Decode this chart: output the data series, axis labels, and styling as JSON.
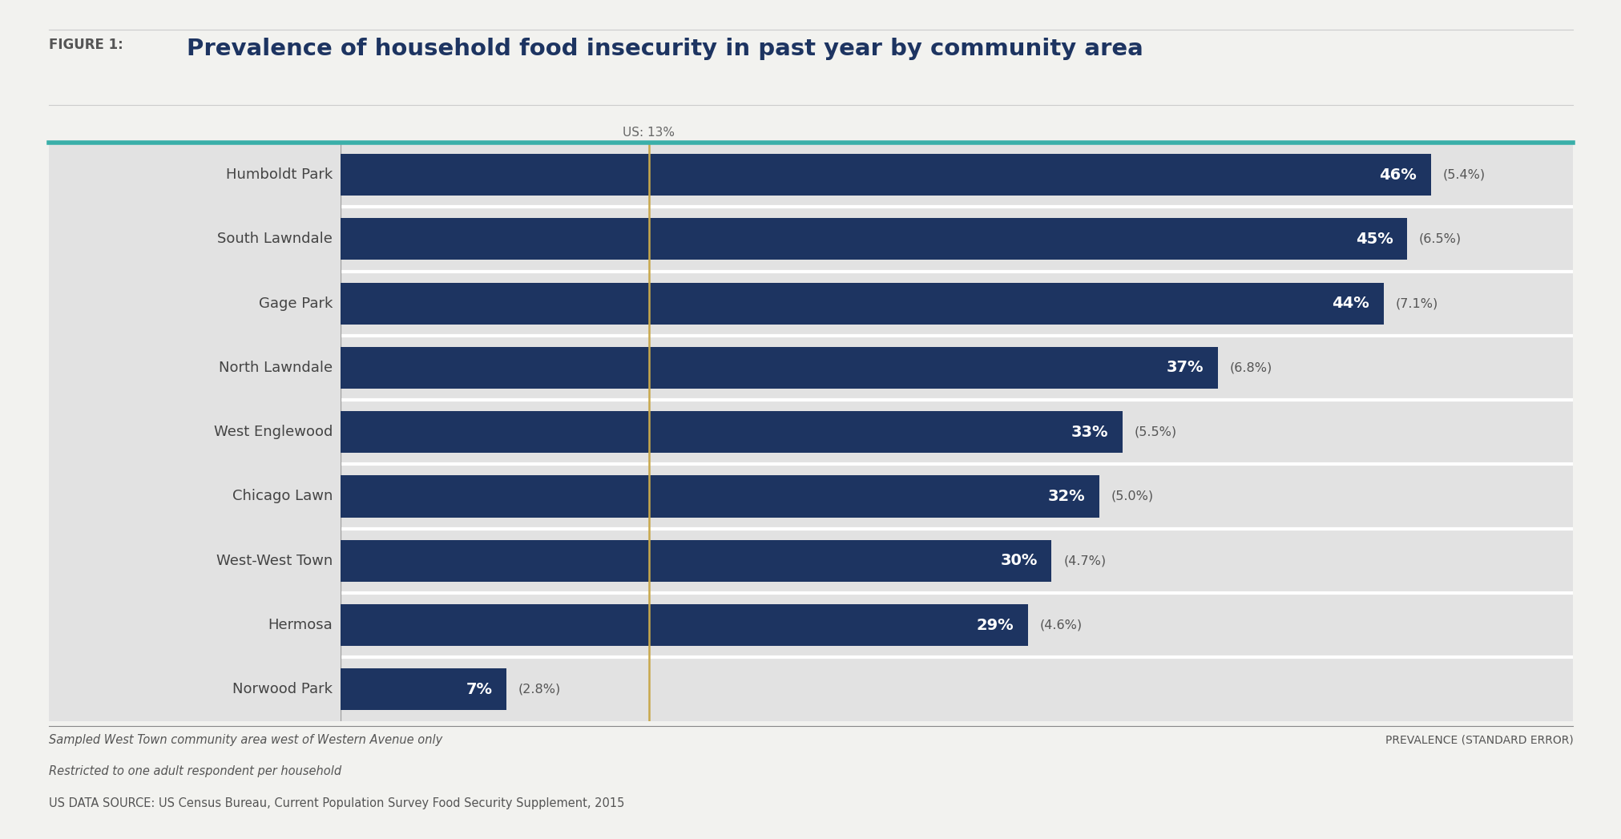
{
  "title_prefix": "FIGURE 1:",
  "title_main": "Prevalence of household food insecurity in past year by community area",
  "categories": [
    "Humboldt Park",
    "South Lawndale",
    "Gage Park",
    "North Lawndale",
    "West Englewood",
    "Chicago Lawn",
    "West-West Town",
    "Hermosa",
    "Norwood Park"
  ],
  "values": [
    46,
    45,
    44,
    37,
    33,
    32,
    30,
    29,
    7
  ],
  "std_errors": [
    "5.4%",
    "6.5%",
    "7.1%",
    "6.8%",
    "5.5%",
    "5.0%",
    "4.7%",
    "4.6%",
    "2.8%"
  ],
  "bar_color": "#1d3461",
  "us_line_value": 13,
  "us_line_color": "#c8a84b",
  "us_line_label": "US: 13%",
  "top_line_color": "#3aafa9",
  "chart_bg": "#e2e2e2",
  "outer_bg": "#f2f2ef",
  "footnote_line1": "Sampled West Town community area west of Western Avenue only",
  "footnote_line2": "Restricted to one adult respondent per household",
  "footnote_line3": "US DATA SOURCE: US Census Bureau, Current Population Survey Food Security Supplement, 2015",
  "axis_label": "PREVALENCE (STANDARD ERROR)",
  "xlim_max": 52,
  "bar_label_color": "#ffffff",
  "se_label_color": "#555555",
  "separator_color": "#b0b0b0"
}
